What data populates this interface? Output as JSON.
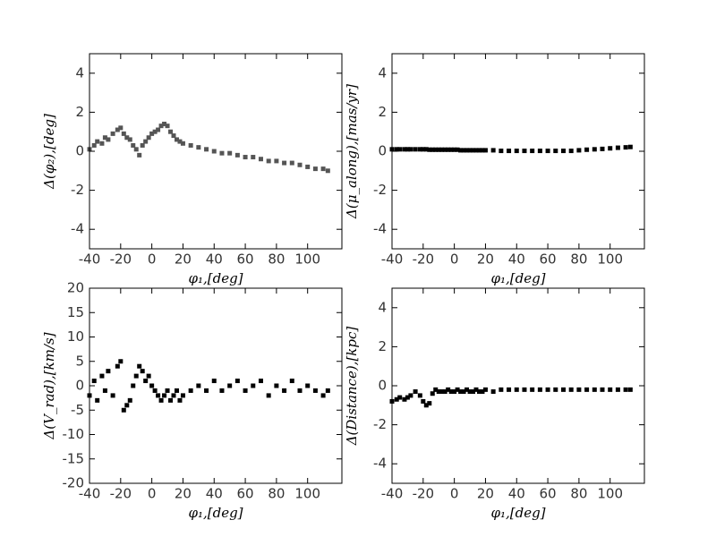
{
  "chart_data": [
    {
      "type": "scatter",
      "xlabel": "φ₁,[deg]",
      "ylabel": "Δ(φ₂),[deg]",
      "color": "#555555",
      "xlim": [
        -40,
        122
      ],
      "ylim": [
        -5,
        5
      ],
      "xticks": [
        -40,
        -20,
        0,
        20,
        40,
        60,
        80,
        100
      ],
      "yticks": [
        -4,
        -2,
        0,
        2,
        4
      ],
      "x": [
        -40,
        -37,
        -35,
        -32,
        -30,
        -28,
        -25,
        -22,
        -20,
        -18,
        -16,
        -14,
        -12,
        -10,
        -8,
        -6,
        -4,
        -2,
        0,
        2,
        4,
        6,
        8,
        10,
        12,
        14,
        16,
        18,
        20,
        25,
        30,
        35,
        40,
        45,
        50,
        55,
        60,
        65,
        70,
        75,
        80,
        85,
        90,
        95,
        100,
        105,
        110,
        113
      ],
      "y": [
        0.1,
        0.3,
        0.5,
        0.4,
        0.7,
        0.6,
        0.9,
        1.1,
        1.2,
        0.9,
        0.7,
        0.6,
        0.3,
        0.1,
        -0.2,
        0.3,
        0.5,
        0.7,
        0.9,
        1.0,
        1.1,
        1.3,
        1.4,
        1.3,
        1.0,
        0.8,
        0.6,
        0.5,
        0.4,
        0.3,
        0.2,
        0.1,
        0.0,
        -0.1,
        -0.1,
        -0.2,
        -0.3,
        -0.3,
        -0.4,
        -0.5,
        -0.5,
        -0.6,
        -0.6,
        -0.7,
        -0.8,
        -0.9,
        -0.9,
        -1.0
      ]
    },
    {
      "type": "scatter",
      "xlabel": "φ₁,[deg]",
      "ylabel": "Δ(μ_along),[mas/yr]",
      "color": "#000000",
      "xlim": [
        -40,
        122
      ],
      "ylim": [
        -5,
        5
      ],
      "xticks": [
        -40,
        -20,
        0,
        20,
        40,
        60,
        80,
        100
      ],
      "yticks": [
        -4,
        -2,
        0,
        2,
        4
      ],
      "x": [
        -40,
        -37,
        -35,
        -32,
        -30,
        -28,
        -25,
        -22,
        -20,
        -18,
        -16,
        -14,
        -12,
        -10,
        -8,
        -6,
        -4,
        -2,
        0,
        2,
        4,
        6,
        8,
        10,
        12,
        14,
        16,
        18,
        20,
        25,
        30,
        35,
        40,
        45,
        50,
        55,
        60,
        65,
        70,
        75,
        80,
        85,
        90,
        95,
        100,
        105,
        110,
        113
      ],
      "y": [
        0.1,
        0.1,
        0.1,
        0.1,
        0.1,
        0.1,
        0.1,
        0.1,
        0.1,
        0.1,
        0.08,
        0.08,
        0.08,
        0.08,
        0.08,
        0.08,
        0.08,
        0.08,
        0.08,
        0.08,
        0.05,
        0.05,
        0.05,
        0.05,
        0.05,
        0.05,
        0.05,
        0.05,
        0.05,
        0.05,
        0.02,
        0.02,
        0.02,
        0.02,
        0.02,
        0.02,
        0.02,
        0.02,
        0.02,
        0.02,
        0.05,
        0.08,
        0.1,
        0.12,
        0.15,
        0.18,
        0.2,
        0.22
      ]
    },
    {
      "type": "scatter",
      "xlabel": "φ₁,[deg]",
      "ylabel": "Δ(V_rad),[km/s]",
      "color": "#000000",
      "xlim": [
        -40,
        122
      ],
      "ylim": [
        -20,
        20
      ],
      "xticks": [
        -40,
        -20,
        0,
        20,
        40,
        60,
        80,
        100
      ],
      "yticks": [
        -20,
        -15,
        -10,
        -5,
        0,
        5,
        10,
        15,
        20
      ],
      "x": [
        -40,
        -37,
        -35,
        -32,
        -30,
        -28,
        -25,
        -22,
        -20,
        -18,
        -16,
        -14,
        -12,
        -10,
        -8,
        -6,
        -4,
        -2,
        0,
        2,
        4,
        6,
        8,
        10,
        12,
        14,
        16,
        18,
        20,
        25,
        30,
        35,
        40,
        45,
        50,
        55,
        60,
        65,
        70,
        75,
        80,
        85,
        90,
        95,
        100,
        105,
        110,
        113
      ],
      "y": [
        -2,
        1,
        -3,
        2,
        -1,
        3,
        -2,
        4,
        5,
        -5,
        -4,
        -3,
        0,
        2,
        4,
        3,
        1,
        2,
        0,
        -1,
        -2,
        -3,
        -2,
        -1,
        -3,
        -2,
        -1,
        -3,
        -2,
        -1,
        0,
        -1,
        1,
        -1,
        0,
        1,
        -1,
        0,
        1,
        -2,
        0,
        -1,
        1,
        -1,
        0,
        -1,
        -2,
        -1
      ]
    },
    {
      "type": "scatter",
      "xlabel": "φ₁,[deg]",
      "ylabel": "Δ(Distance),[kpc]",
      "color": "#000000",
      "xlim": [
        -40,
        122
      ],
      "ylim": [
        -5,
        5
      ],
      "xticks": [
        -40,
        -20,
        0,
        20,
        40,
        60,
        80,
        100
      ],
      "yticks": [
        -4,
        -2,
        0,
        2,
        4
      ],
      "x": [
        -40,
        -37,
        -35,
        -32,
        -30,
        -28,
        -25,
        -22,
        -20,
        -18,
        -16,
        -14,
        -12,
        -10,
        -8,
        -6,
        -4,
        -2,
        0,
        2,
        4,
        6,
        8,
        10,
        12,
        14,
        16,
        18,
        20,
        25,
        30,
        35,
        40,
        45,
        50,
        55,
        60,
        65,
        70,
        75,
        80,
        85,
        90,
        95,
        100,
        105,
        110,
        113
      ],
      "y": [
        -0.8,
        -0.7,
        -0.6,
        -0.7,
        -0.6,
        -0.5,
        -0.3,
        -0.5,
        -0.8,
        -1.0,
        -0.9,
        -0.4,
        -0.2,
        -0.3,
        -0.3,
        -0.3,
        -0.2,
        -0.3,
        -0.3,
        -0.2,
        -0.3,
        -0.3,
        -0.2,
        -0.3,
        -0.3,
        -0.2,
        -0.3,
        -0.3,
        -0.2,
        -0.3,
        -0.2,
        -0.2,
        -0.2,
        -0.2,
        -0.2,
        -0.2,
        -0.2,
        -0.2,
        -0.2,
        -0.2,
        -0.2,
        -0.2,
        -0.2,
        -0.2,
        -0.2,
        -0.2,
        -0.2,
        -0.2
      ]
    }
  ]
}
